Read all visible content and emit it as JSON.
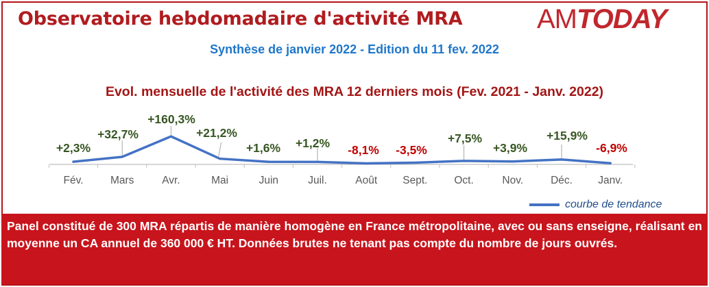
{
  "header": {
    "title": "Observatoire hebdomadaire d'activité MRA",
    "logo_prefix": "AM",
    "logo_suffix": "TODAY",
    "subtitle": "Synthèse de janvier 2022 - Edition du 11 fev. 2022"
  },
  "chart_data": {
    "type": "line",
    "title": "Evol. mensuelle de l'activité des MRA 12 derniers mois (Fev. 2021 - Janv. 2022)",
    "categories": [
      "Fév.",
      "Mars",
      "Avr.",
      "Mai",
      "Juin",
      "Juil.",
      "Août",
      "Sept.",
      "Oct.",
      "Nov.",
      "Déc.",
      "Janv."
    ],
    "values": [
      2.3,
      32.7,
      160.3,
      21.2,
      1.6,
      1.2,
      -8.1,
      -3.5,
      7.5,
      3.9,
      15.9,
      -6.9
    ],
    "labels": [
      "+2,3%",
      "+32,7%",
      "+160,3%",
      "+21,2%",
      "+1,6%",
      "+1,2%",
      "-8,1%",
      "-3,5%",
      "+7,5%",
      "+3,9%",
      "+15,9%",
      "-6,9%"
    ],
    "ylim": [
      -10,
      165
    ],
    "grid": false,
    "colors": {
      "line": "#4472c4",
      "positive_label": "#375623",
      "negative_label": "#c00000",
      "axis": "#bfbfbf",
      "tick_label": "#595959"
    },
    "legend": {
      "label": "courbe de tendance",
      "position": "bottom-right"
    }
  },
  "footer": {
    "text": "Panel constitué de 300 MRA répartis de manière homogène en France métropolitaine, avec ou sans enseigne, réalisant en moyenne un CA annuel de 360 000 € HT. Données brutes ne tenant pas compte du nombre de jours ouvrés."
  }
}
